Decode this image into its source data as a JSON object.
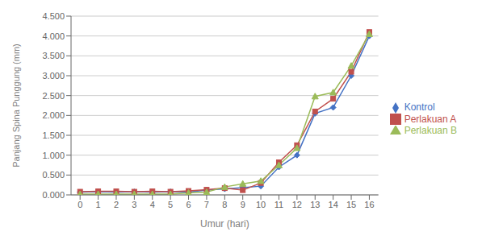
{
  "chart_data": {
    "type": "line",
    "xlabel": "Umur (hari)",
    "ylabel": "Panjang Spina Punggung (mm)",
    "x": [
      0,
      1,
      2,
      3,
      4,
      5,
      6,
      7,
      8,
      9,
      10,
      11,
      12,
      13,
      14,
      15,
      16
    ],
    "xlim": [
      -0.5,
      16.5
    ],
    "xticks": [
      0,
      1,
      2,
      3,
      4,
      5,
      6,
      7,
      8,
      9,
      10,
      11,
      12,
      13,
      14,
      15,
      16
    ],
    "ylim": [
      0.0,
      4.5
    ],
    "yticks": [
      {
        "value": 0.0,
        "label": "0.000"
      },
      {
        "value": 0.5,
        "label": "0.500"
      },
      {
        "value": 1.0,
        "label": "1.000"
      },
      {
        "value": 1.5,
        "label": "1.500"
      },
      {
        "value": 2.0,
        "label": "2.000"
      },
      {
        "value": 2.5,
        "label": "2.500"
      },
      {
        "value": 3.0,
        "label": "3.000"
      },
      {
        "value": 3.5,
        "label": "3.500"
      },
      {
        "value": 4.0,
        "label": "4.000"
      },
      {
        "value": 4.5,
        "label": "4.500"
      }
    ],
    "grid": true,
    "legend": "right",
    "series": [
      {
        "name": "Kontrol",
        "color": "#4472C4",
        "marker": "diamond",
        "values": [
          0.07,
          0.08,
          0.07,
          0.08,
          0.07,
          0.08,
          0.07,
          0.12,
          0.15,
          0.18,
          0.22,
          0.7,
          1.0,
          2.05,
          2.2,
          3.0,
          4.0
        ]
      },
      {
        "name": "Perlakuan A",
        "color": "#C0504D",
        "marker": "square",
        "values": [
          0.08,
          0.09,
          0.09,
          0.08,
          0.09,
          0.08,
          0.1,
          0.13,
          0.17,
          0.12,
          0.3,
          0.82,
          1.25,
          2.1,
          2.42,
          3.1,
          4.1
        ]
      },
      {
        "name": "Perlakuan B",
        "color": "#9BBB59",
        "marker": "triangle",
        "values": [
          0.02,
          0.02,
          0.02,
          0.02,
          0.02,
          0.02,
          0.05,
          0.07,
          0.2,
          0.28,
          0.35,
          0.75,
          1.18,
          2.48,
          2.58,
          3.25,
          4.05
        ]
      }
    ]
  }
}
